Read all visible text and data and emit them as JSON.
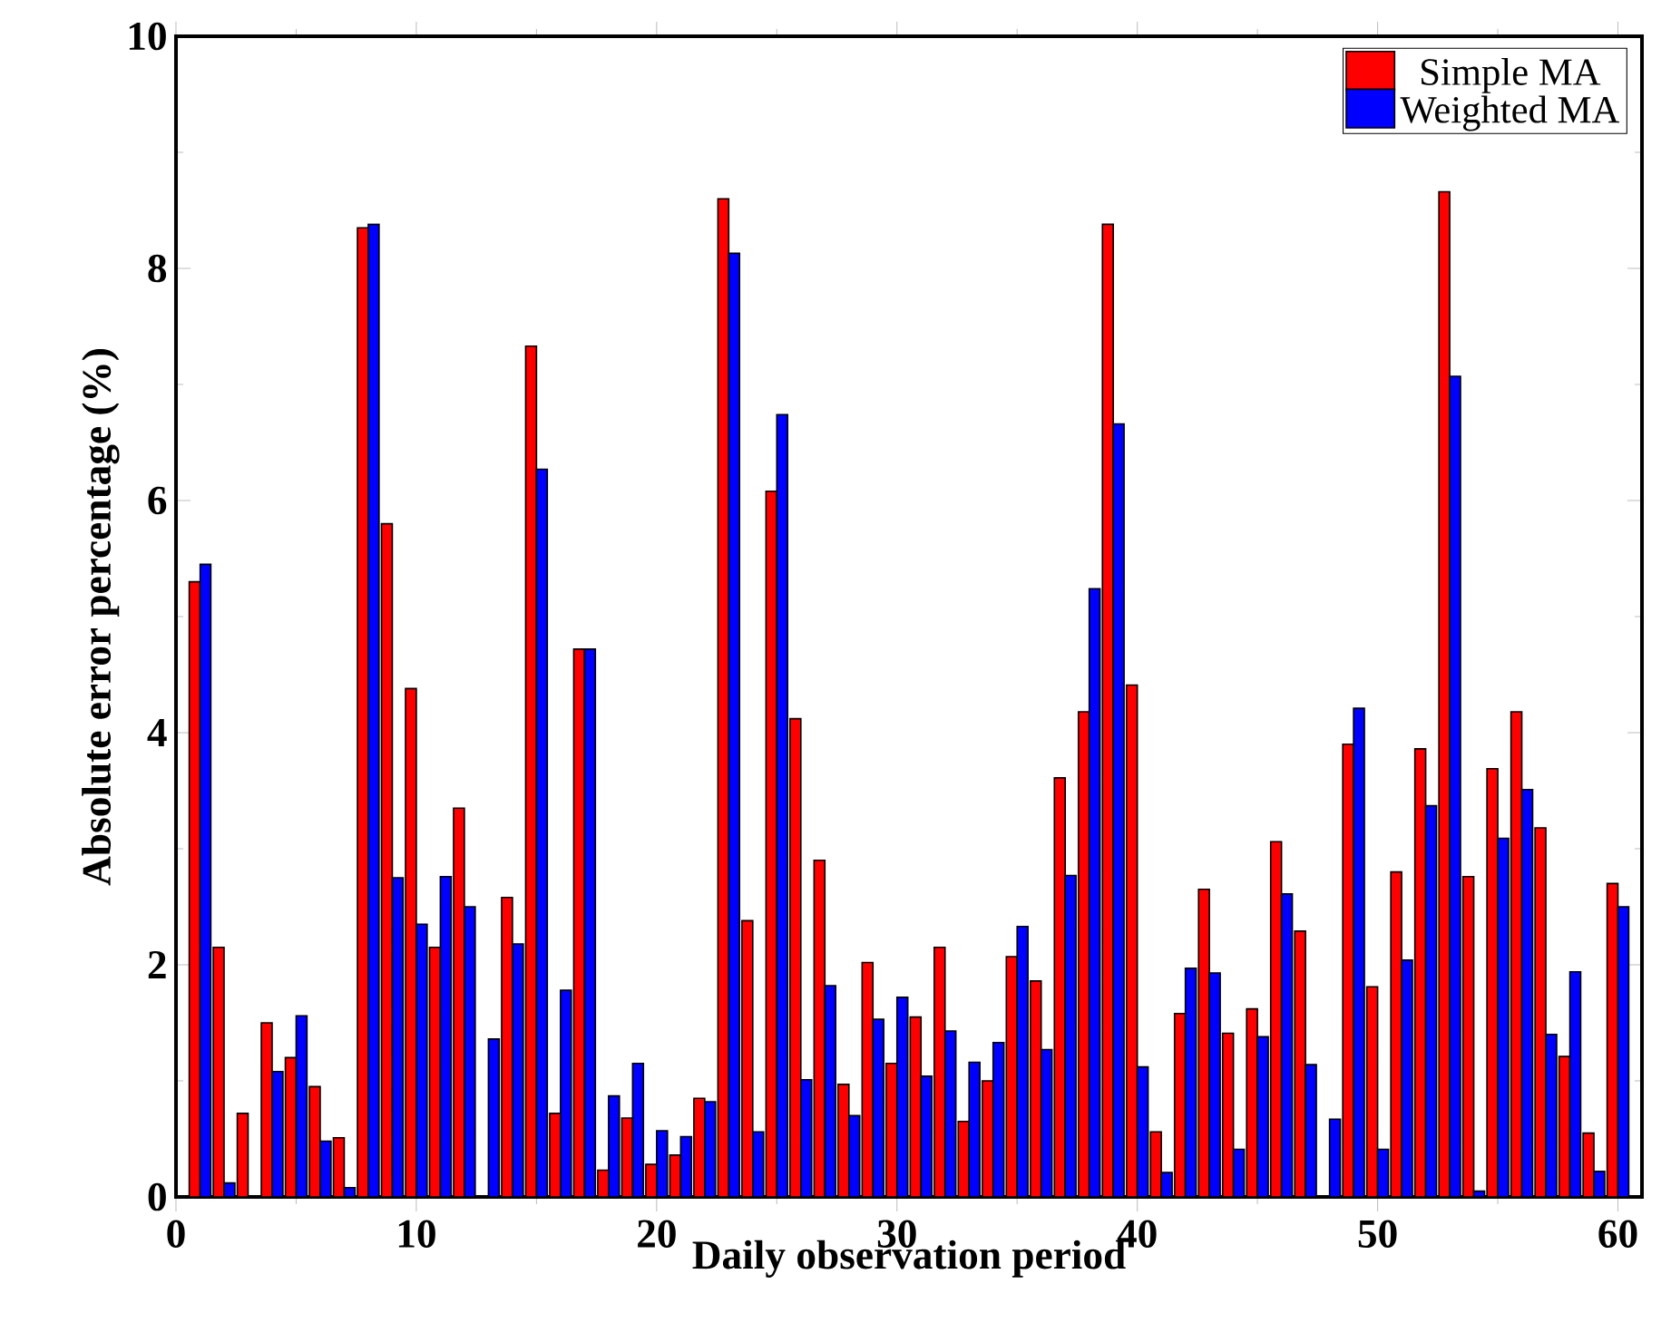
{
  "chart_data": {
    "type": "bar",
    "xlabel": "Daily observation period",
    "ylabel": "Absolute error percentage (%)",
    "x": [
      1,
      2,
      3,
      4,
      5,
      6,
      7,
      8,
      9,
      10,
      11,
      12,
      13,
      14,
      15,
      16,
      17,
      18,
      19,
      20,
      21,
      22,
      23,
      24,
      25,
      26,
      27,
      28,
      29,
      30,
      31,
      32,
      33,
      34,
      35,
      36,
      37,
      38,
      39,
      40,
      41,
      42,
      43,
      44,
      45,
      46,
      47,
      48,
      49,
      50,
      51,
      52,
      53,
      54,
      55,
      56,
      57,
      58,
      59,
      60
    ],
    "series": [
      {
        "name": "Simple MA",
        "color": "#ff0000",
        "values": [
          5.3,
          2.15,
          0.72,
          1.5,
          1.2,
          0.95,
          0.51,
          8.35,
          5.8,
          4.38,
          2.15,
          3.35,
          0.0,
          2.58,
          7.33,
          0.72,
          4.72,
          0.23,
          0.68,
          0.28,
          0.36,
          0.85,
          8.6,
          2.38,
          6.08,
          4.12,
          2.9,
          0.97,
          2.02,
          1.15,
          1.55,
          2.15,
          0.65,
          1.0,
          2.07,
          1.86,
          3.61,
          4.18,
          8.38,
          4.41,
          0.56,
          1.58,
          2.65,
          1.41,
          1.62,
          3.06,
          2.29,
          null,
          3.9,
          1.81,
          2.8,
          3.86,
          8.66,
          2.76,
          3.69,
          4.18,
          3.18,
          1.21,
          0.55,
          2.7
        ]
      },
      {
        "name": "Weighted MA",
        "color": "#0000ff",
        "values": [
          5.45,
          0.12,
          null,
          1.08,
          1.56,
          0.48,
          0.08,
          8.38,
          2.75,
          2.35,
          2.76,
          2.5,
          1.36,
          2.18,
          6.27,
          1.78,
          4.72,
          0.87,
          1.15,
          0.57,
          0.52,
          0.82,
          8.13,
          0.56,
          6.74,
          1.01,
          1.82,
          0.7,
          1.53,
          1.72,
          1.04,
          1.43,
          1.16,
          1.33,
          2.33,
          1.27,
          2.77,
          5.24,
          6.66,
          1.12,
          0.21,
          1.97,
          1.93,
          0.41,
          1.38,
          2.61,
          1.14,
          0.67,
          4.21,
          0.41,
          2.04,
          3.37,
          7.07,
          0.05,
          3.09,
          3.51,
          1.4,
          1.94,
          0.22,
          2.5
        ]
      }
    ],
    "xlim": [
      0,
      61
    ],
    "ylim": [
      0,
      10
    ],
    "xticks": [
      0,
      10,
      20,
      30,
      40,
      50,
      60
    ],
    "yticks": [
      0,
      2,
      4,
      6,
      8,
      10
    ],
    "legend": "top right"
  }
}
